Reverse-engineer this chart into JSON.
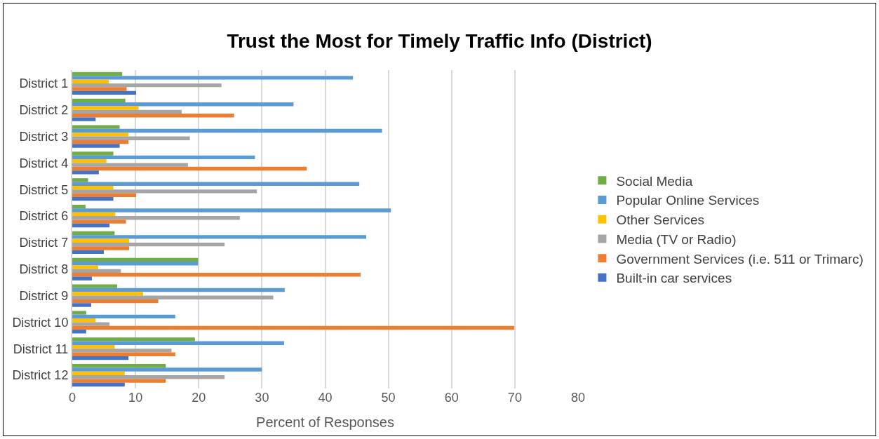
{
  "chart_data": {
    "type": "bar",
    "orientation": "horizontal",
    "title": "Trust the Most for Timely Traffic Info (District)",
    "xlabel": "Percent of Responses",
    "categories": [
      "District 1",
      "District 2",
      "District 3",
      "District 4",
      "District 5",
      "District 6",
      "District 7",
      "District 8",
      "District 9",
      "District 10",
      "District 11",
      "District 12"
    ],
    "series": [
      {
        "name": "Social Media",
        "color": "#70ad47",
        "values": [
          7.9,
          8.4,
          7.5,
          6.5,
          2.5,
          2.1,
          6.7,
          19.9,
          7.1,
          2.2,
          19.4,
          14.8
        ]
      },
      {
        "name": "Popular Online Services",
        "color": "#5b9bd5",
        "values": [
          44.4,
          35.0,
          49.0,
          28.9,
          45.4,
          50.4,
          46.5,
          19.9,
          33.6,
          16.3,
          33.5,
          30.0
        ]
      },
      {
        "name": "Other Services",
        "color": "#ffc000",
        "values": [
          5.8,
          10.5,
          8.9,
          5.4,
          6.5,
          6.8,
          9.0,
          4.1,
          11.2,
          3.7,
          6.7,
          8.3
        ]
      },
      {
        "name": "Media (TV or Radio)",
        "color": "#a5a5a5",
        "values": [
          23.6,
          17.3,
          18.6,
          18.3,
          29.2,
          26.5,
          24.1,
          7.7,
          31.8,
          5.9,
          15.7,
          24.1
        ]
      },
      {
        "name": "Government Services (i.e. 511 or Trimarc)",
        "color": "#ed7d31",
        "values": [
          8.6,
          25.6,
          8.9,
          37.1,
          10.1,
          8.5,
          9.0,
          45.6,
          13.6,
          69.9,
          16.3,
          14.8
        ]
      },
      {
        "name": "Built-in car services",
        "color": "#4472c4",
        "values": [
          10.1,
          3.7,
          7.5,
          4.2,
          6.5,
          5.9,
          5.0,
          3.1,
          3.0,
          2.2,
          8.9,
          8.3
        ]
      }
    ],
    "xlim": [
      0,
      80
    ],
    "xticks": [
      0,
      10,
      20,
      30,
      40,
      50,
      60,
      70,
      80
    ],
    "grid": "x",
    "legend": "right"
  }
}
